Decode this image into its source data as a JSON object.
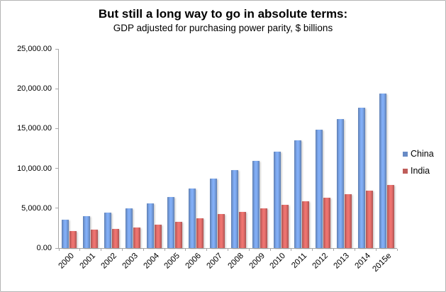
{
  "chart_data": {
    "type": "bar",
    "title": "But still a long way to go in absolute terms:",
    "subtitle": "GDP adjusted for purchasing power parity, $ billions",
    "categories": [
      "2000",
      "2001",
      "2002",
      "2003",
      "2004",
      "2005",
      "2006",
      "2007",
      "2008",
      "2009",
      "2010",
      "2011",
      "2012",
      "2013",
      "2014",
      "2015e"
    ],
    "series": [
      {
        "name": "China",
        "color": "#7aa4e8",
        "values": [
          3600,
          4000,
          4450,
          4950,
          5650,
          6450,
          7500,
          8700,
          9800,
          10900,
          12100,
          13500,
          14850,
          16200,
          17650,
          19400
        ]
      },
      {
        "name": "India",
        "color": "#e16d6a",
        "values": [
          2100,
          2300,
          2400,
          2600,
          2900,
          3300,
          3700,
          4250,
          4550,
          4950,
          5400,
          5900,
          6300,
          6750,
          7200,
          7900
        ]
      }
    ],
    "ylim": [
      0,
      25000
    ],
    "y_tick_step": 5000,
    "y_tick_labels": [
      "25,000.00",
      "20,000.00",
      "15,000.00",
      "10,000.00",
      "5,000.00",
      "0.00"
    ],
    "grid": false,
    "legend_position": "right",
    "axis_color": "#a6a6a6"
  },
  "legend": {
    "items": [
      {
        "label": "China",
        "color": "#7aa4e8"
      },
      {
        "label": "India",
        "color": "#e16d6a"
      }
    ]
  }
}
